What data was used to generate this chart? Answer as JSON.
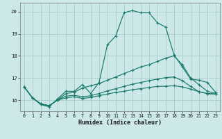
{
  "title": "",
  "xlabel": "Humidex (Indice chaleur)",
  "ylabel": "",
  "bg_color": "#cce8e8",
  "grid_color": "#b0d0d0",
  "line_color": "#1a7a6a",
  "xlim": [
    -0.5,
    23.5
  ],
  "ylim": [
    15.5,
    20.4
  ],
  "yticks": [
    16,
    17,
    18,
    19,
    20
  ],
  "xticks": [
    0,
    1,
    2,
    3,
    4,
    5,
    6,
    7,
    8,
    9,
    10,
    11,
    12,
    13,
    14,
    15,
    16,
    17,
    18,
    19,
    20,
    21,
    22,
    23
  ],
  "series": [
    [
      16.6,
      16.1,
      15.8,
      15.7,
      16.05,
      16.4,
      16.4,
      16.7,
      16.3,
      16.8,
      18.5,
      18.9,
      19.95,
      20.05,
      19.95,
      19.95,
      19.5,
      19.3,
      18.05,
      17.5,
      16.95,
      16.9,
      16.8,
      16.35
    ],
    [
      16.6,
      16.1,
      15.83,
      15.75,
      16.0,
      16.3,
      16.35,
      16.55,
      16.65,
      16.75,
      16.9,
      17.05,
      17.2,
      17.35,
      17.5,
      17.6,
      17.75,
      17.9,
      18.0,
      17.6,
      17.0,
      16.7,
      16.4,
      16.3
    ],
    [
      16.6,
      16.1,
      15.83,
      15.75,
      16.0,
      16.18,
      16.22,
      16.15,
      16.2,
      16.3,
      16.42,
      16.52,
      16.62,
      16.72,
      16.8,
      16.88,
      16.95,
      17.02,
      17.05,
      16.88,
      16.62,
      16.38,
      16.3,
      16.28
    ],
    [
      16.6,
      16.1,
      15.83,
      15.75,
      16.0,
      16.1,
      16.15,
      16.08,
      16.12,
      16.2,
      16.28,
      16.35,
      16.4,
      16.47,
      16.52,
      16.57,
      16.62,
      16.63,
      16.65,
      16.6,
      16.5,
      16.38,
      16.3,
      16.27
    ]
  ]
}
